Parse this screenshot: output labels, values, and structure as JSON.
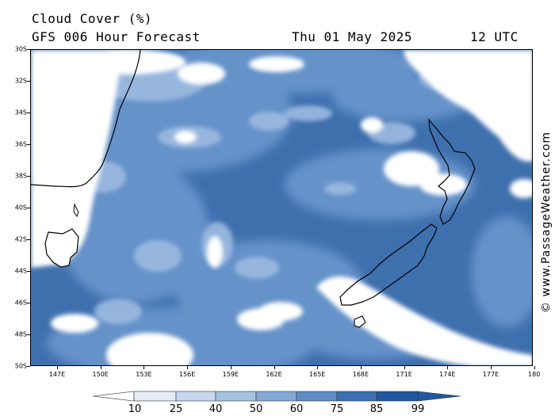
{
  "header": {
    "title": "Cloud Cover (%)",
    "subtitle": "GFS 006 Hour Forecast",
    "date": "Thu 01 May 2025",
    "time": "12 UTC"
  },
  "axes": {
    "lat_labels": [
      "30S",
      "32S",
      "34S",
      "36S",
      "38S",
      "40S",
      "42S",
      "44S",
      "46S",
      "48S",
      "50S"
    ],
    "lon_labels": [
      "147E",
      "150E",
      "153E",
      "156E",
      "159E",
      "162E",
      "165E",
      "168E",
      "171E",
      "174E",
      "177E",
      "180"
    ]
  },
  "credit": "© www.PassageWeather.com",
  "legend": {
    "levels": [
      "10",
      "25",
      "40",
      "50",
      "60",
      "75",
      "85",
      "99"
    ],
    "colors": [
      "#ffffff",
      "#e4ecf7",
      "#c6d7ee",
      "#a6c2e3",
      "#84a9d7",
      "#5e8dc6",
      "#3d70b3",
      "#1f57a0"
    ]
  },
  "palette": {
    "sea_deep": "#3e6fae",
    "cloud_light": "#ffffff",
    "land_outline": "#000000"
  }
}
